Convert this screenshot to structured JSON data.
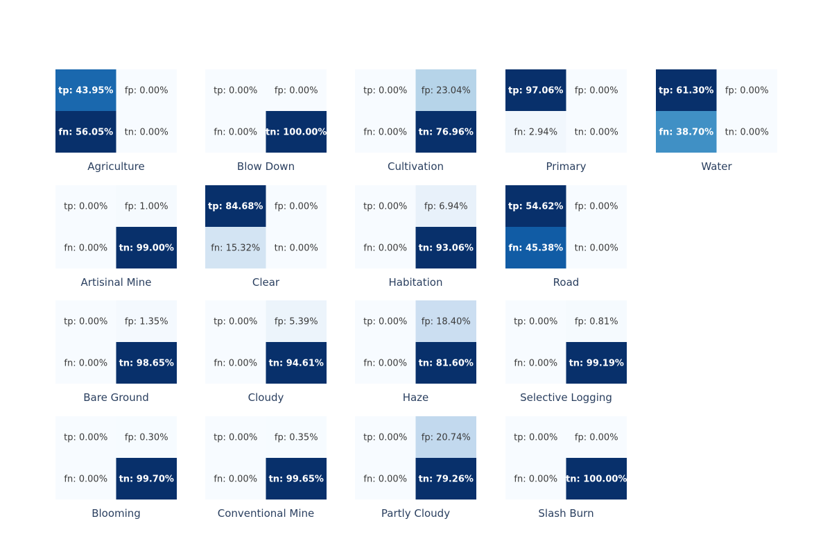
{
  "chart_data": {
    "type": "heatmap",
    "colorscale": "Blues",
    "cell_order": [
      "tp",
      "fp",
      "fn",
      "tn"
    ],
    "panels": [
      {
        "title": "Agriculture",
        "tp": 43.95,
        "fp": 0.0,
        "fn": 56.05,
        "tn": 0.0
      },
      {
        "title": "Blow Down",
        "tp": 0.0,
        "fp": 0.0,
        "fn": 0.0,
        "tn": 100.0
      },
      {
        "title": "Cultivation",
        "tp": 0.0,
        "fp": 23.04,
        "fn": 0.0,
        "tn": 76.96
      },
      {
        "title": "Primary",
        "tp": 97.06,
        "fp": 0.0,
        "fn": 2.94,
        "tn": 0.0
      },
      {
        "title": "Water",
        "tp": 61.3,
        "fp": 0.0,
        "fn": 38.7,
        "tn": 0.0
      },
      {
        "title": "Artisinal Mine",
        "tp": 0.0,
        "fp": 1.0,
        "fn": 0.0,
        "tn": 99.0
      },
      {
        "title": "Clear",
        "tp": 84.68,
        "fp": 0.0,
        "fn": 15.32,
        "tn": 0.0
      },
      {
        "title": "Habitation",
        "tp": 0.0,
        "fp": 6.94,
        "fn": 0.0,
        "tn": 93.06
      },
      {
        "title": "Road",
        "tp": 54.62,
        "fp": 0.0,
        "fn": 45.38,
        "tn": 0.0
      },
      {
        "title": "Bare Ground",
        "tp": 0.0,
        "fp": 1.35,
        "fn": 0.0,
        "tn": 98.65
      },
      {
        "title": "Cloudy",
        "tp": 0.0,
        "fp": 5.39,
        "fn": 0.0,
        "tn": 94.61
      },
      {
        "title": "Haze",
        "tp": 0.0,
        "fp": 18.4,
        "fn": 0.0,
        "tn": 81.6
      },
      {
        "title": "Selective Logging",
        "tp": 0.0,
        "fp": 0.81,
        "fn": 0.0,
        "tn": 99.19
      },
      {
        "title": "Blooming",
        "tp": 0.0,
        "fp": 0.3,
        "fn": 0.0,
        "tn": 99.7
      },
      {
        "title": "Conventional Mine",
        "tp": 0.0,
        "fp": 0.35,
        "fn": 0.0,
        "tn": 99.65
      },
      {
        "title": "Partly Cloudy",
        "tp": 0.0,
        "fp": 20.74,
        "fn": 0.0,
        "tn": 79.26
      },
      {
        "title": "Slash Burn",
        "tp": 0.0,
        "fp": 0.0,
        "fn": 0.0,
        "tn": 100.0
      }
    ]
  }
}
